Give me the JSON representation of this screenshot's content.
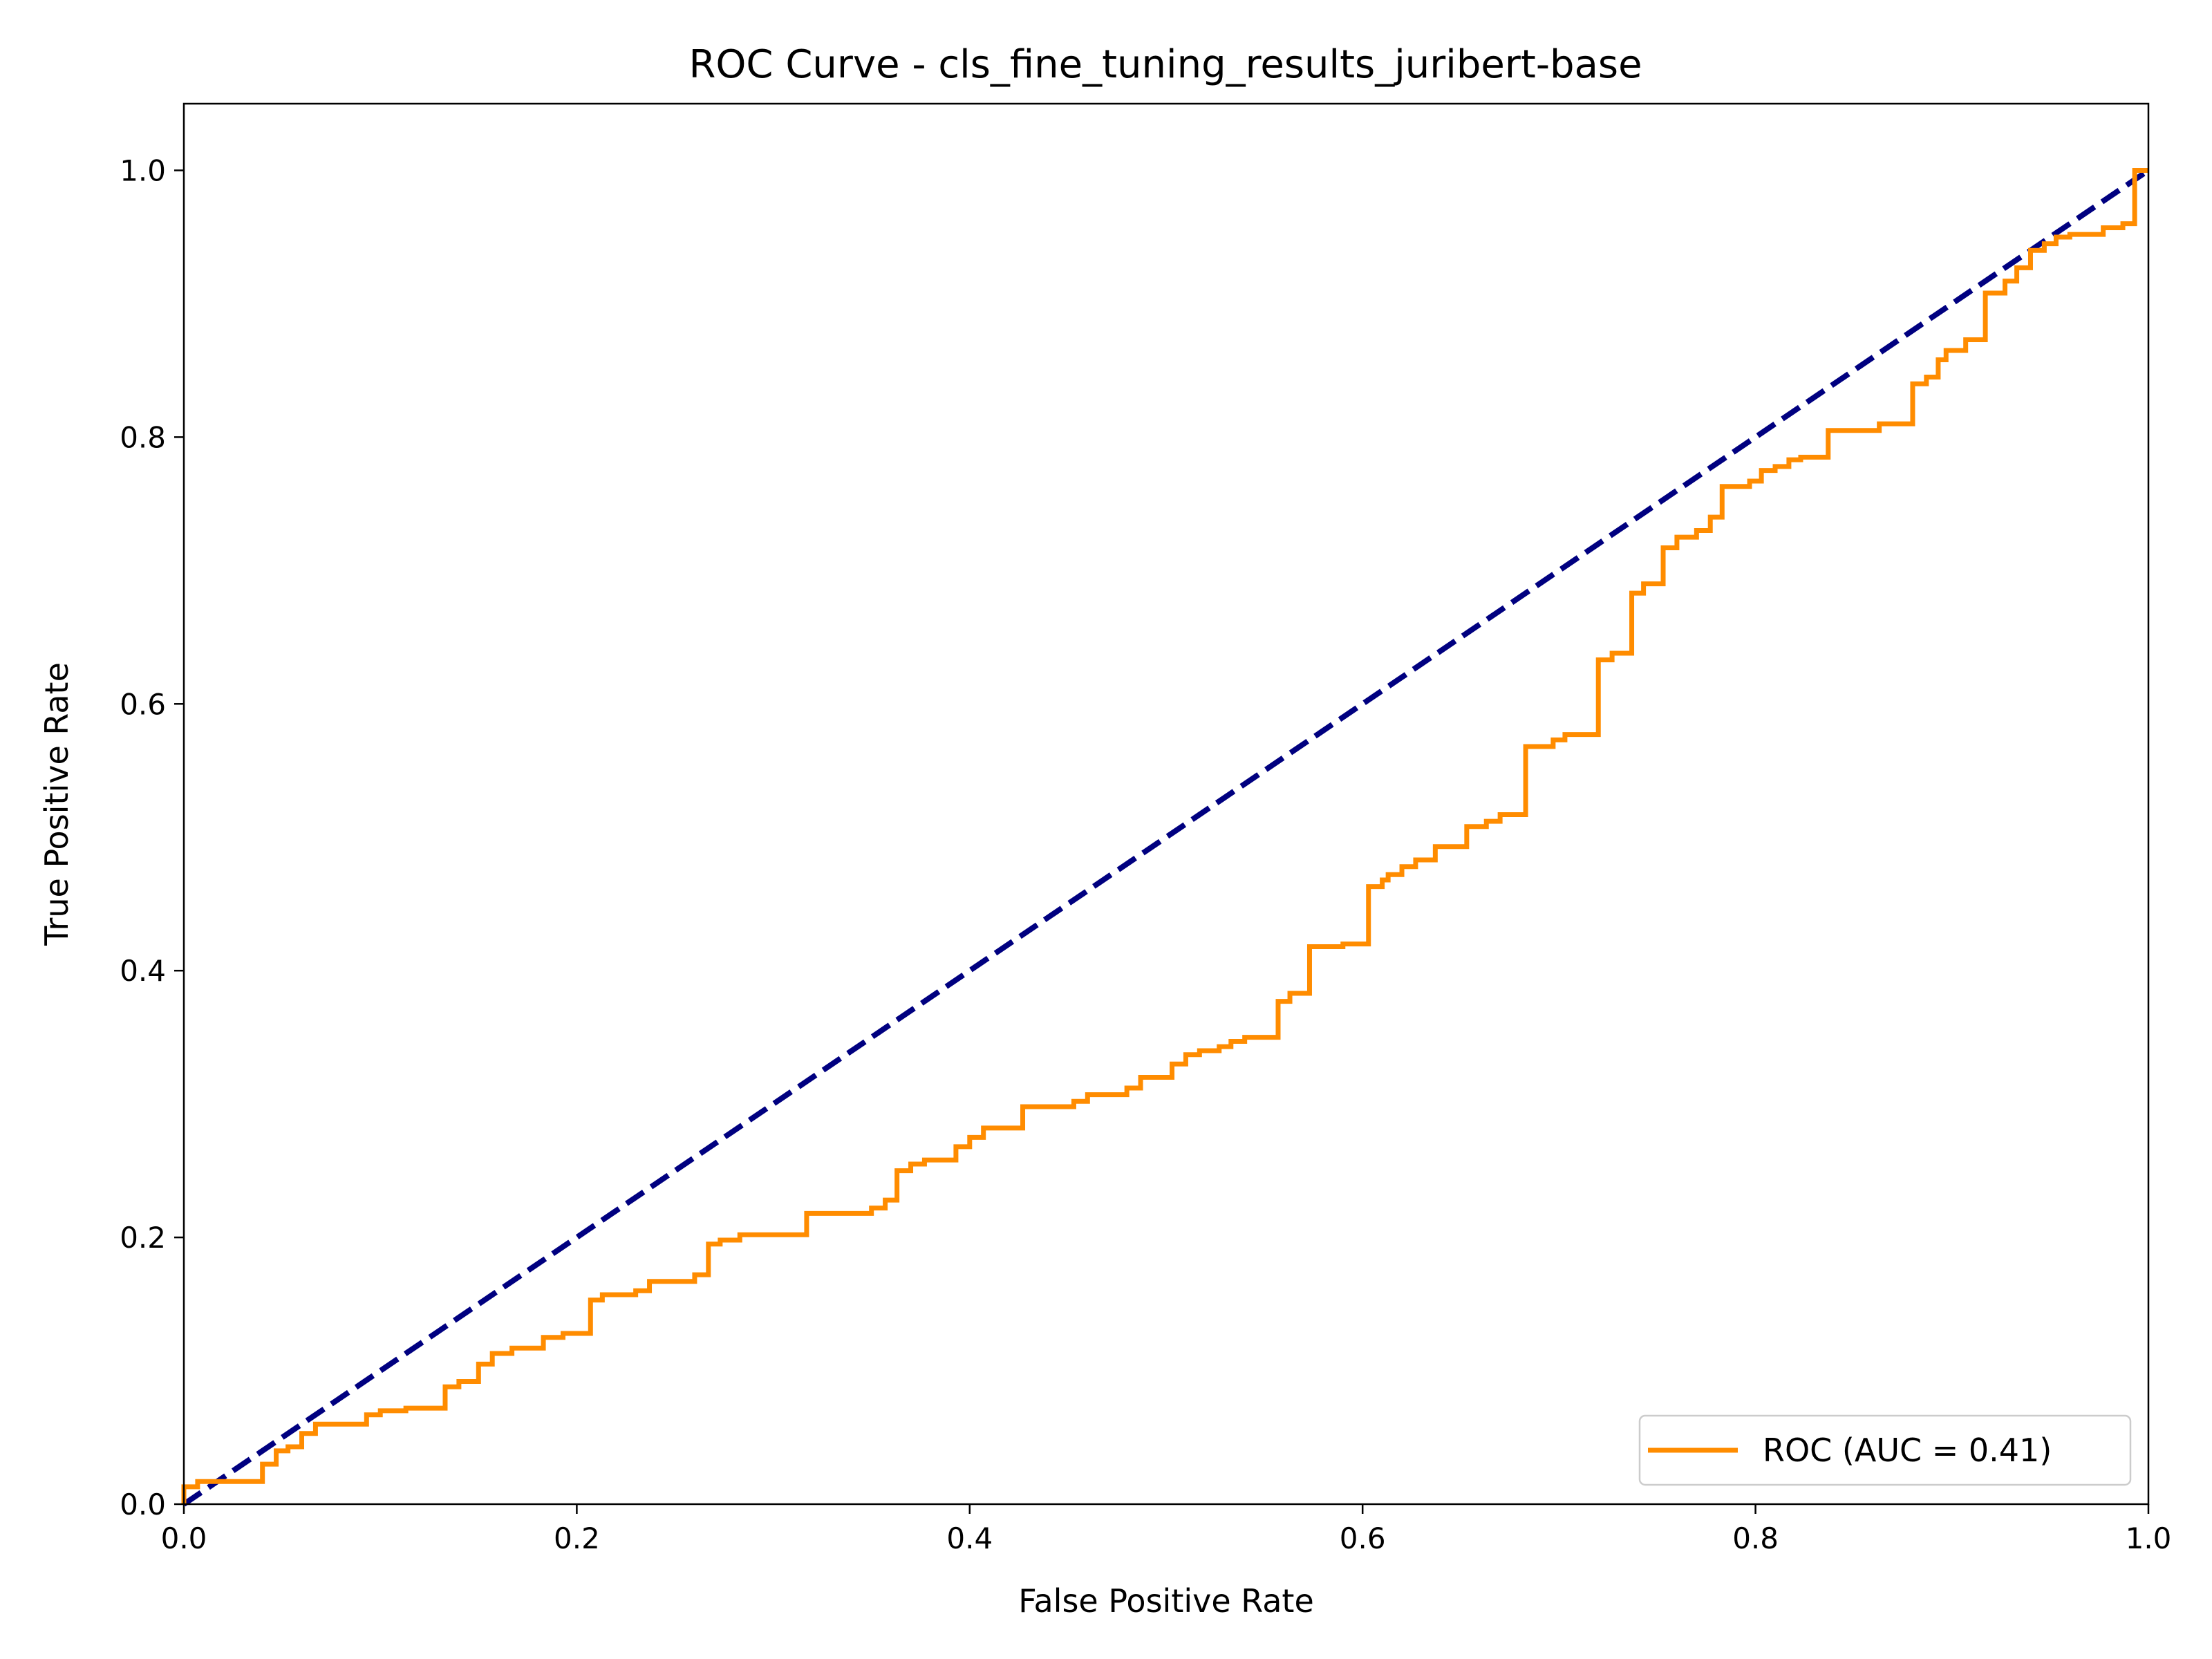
{
  "chart_data": {
    "type": "line",
    "title": "ROC Curve - cls_fine_tuning_results_juribert-base",
    "xlabel": "False Positive Rate",
    "ylabel": "True Positive Rate",
    "xlim": [
      0.0,
      1.0
    ],
    "ylim": [
      0.0,
      1.05
    ],
    "xticks": [
      0.0,
      0.2,
      0.4,
      0.6,
      0.8,
      1.0
    ],
    "xtick_labels": [
      "0.0",
      "0.2",
      "0.4",
      "0.6",
      "0.8",
      "1.0"
    ],
    "yticks": [
      0.0,
      0.2,
      0.4,
      0.6,
      0.8,
      1.0
    ],
    "ytick_labels": [
      "0.0",
      "0.2",
      "0.4",
      "0.6",
      "0.8",
      "1.0"
    ],
    "grid": false,
    "legend_position": "lower-right",
    "series": [
      {
        "name": "ROC (AUC = 0.41)",
        "color": "#ff8c00",
        "style": "solid",
        "step": true,
        "points": [
          [
            0.0,
            0.0
          ],
          [
            0.0,
            0.013
          ],
          [
            0.007,
            0.013
          ],
          [
            0.007,
            0.017
          ],
          [
            0.04,
            0.017
          ],
          [
            0.04,
            0.03
          ],
          [
            0.047,
            0.03
          ],
          [
            0.047,
            0.04
          ],
          [
            0.053,
            0.04
          ],
          [
            0.053,
            0.043
          ],
          [
            0.06,
            0.043
          ],
          [
            0.06,
            0.053
          ],
          [
            0.067,
            0.053
          ],
          [
            0.067,
            0.06
          ],
          [
            0.093,
            0.06
          ],
          [
            0.093,
            0.067
          ],
          [
            0.1,
            0.067
          ],
          [
            0.1,
            0.07
          ],
          [
            0.113,
            0.07
          ],
          [
            0.113,
            0.072
          ],
          [
            0.133,
            0.072
          ],
          [
            0.133,
            0.088
          ],
          [
            0.14,
            0.088
          ],
          [
            0.14,
            0.092
          ],
          [
            0.15,
            0.092
          ],
          [
            0.15,
            0.105
          ],
          [
            0.157,
            0.105
          ],
          [
            0.157,
            0.113
          ],
          [
            0.167,
            0.113
          ],
          [
            0.167,
            0.117
          ],
          [
            0.183,
            0.117
          ],
          [
            0.183,
            0.125
          ],
          [
            0.193,
            0.125
          ],
          [
            0.193,
            0.128
          ],
          [
            0.207,
            0.128
          ],
          [
            0.207,
            0.153
          ],
          [
            0.213,
            0.153
          ],
          [
            0.213,
            0.157
          ],
          [
            0.23,
            0.157
          ],
          [
            0.23,
            0.16
          ],
          [
            0.237,
            0.16
          ],
          [
            0.237,
            0.167
          ],
          [
            0.26,
            0.167
          ],
          [
            0.26,
            0.172
          ],
          [
            0.267,
            0.172
          ],
          [
            0.267,
            0.195
          ],
          [
            0.273,
            0.195
          ],
          [
            0.273,
            0.198
          ],
          [
            0.283,
            0.198
          ],
          [
            0.283,
            0.202
          ],
          [
            0.317,
            0.202
          ],
          [
            0.317,
            0.218
          ],
          [
            0.35,
            0.218
          ],
          [
            0.35,
            0.222
          ],
          [
            0.357,
            0.222
          ],
          [
            0.357,
            0.228
          ],
          [
            0.363,
            0.228
          ],
          [
            0.363,
            0.25
          ],
          [
            0.37,
            0.25
          ],
          [
            0.37,
            0.255
          ],
          [
            0.377,
            0.255
          ],
          [
            0.377,
            0.258
          ],
          [
            0.393,
            0.258
          ],
          [
            0.393,
            0.268
          ],
          [
            0.4,
            0.268
          ],
          [
            0.4,
            0.275
          ],
          [
            0.407,
            0.275
          ],
          [
            0.407,
            0.282
          ],
          [
            0.427,
            0.282
          ],
          [
            0.427,
            0.298
          ],
          [
            0.453,
            0.298
          ],
          [
            0.453,
            0.302
          ],
          [
            0.46,
            0.302
          ],
          [
            0.46,
            0.307
          ],
          [
            0.48,
            0.307
          ],
          [
            0.48,
            0.312
          ],
          [
            0.487,
            0.312
          ],
          [
            0.487,
            0.32
          ],
          [
            0.503,
            0.32
          ],
          [
            0.503,
            0.33
          ],
          [
            0.51,
            0.33
          ],
          [
            0.51,
            0.337
          ],
          [
            0.517,
            0.337
          ],
          [
            0.517,
            0.34
          ],
          [
            0.527,
            0.34
          ],
          [
            0.527,
            0.343
          ],
          [
            0.533,
            0.343
          ],
          [
            0.533,
            0.347
          ],
          [
            0.54,
            0.347
          ],
          [
            0.54,
            0.35
          ],
          [
            0.557,
            0.35
          ],
          [
            0.557,
            0.377
          ],
          [
            0.563,
            0.377
          ],
          [
            0.563,
            0.383
          ],
          [
            0.573,
            0.383
          ],
          [
            0.573,
            0.418
          ],
          [
            0.59,
            0.418
          ],
          [
            0.59,
            0.42
          ],
          [
            0.603,
            0.42
          ],
          [
            0.603,
            0.463
          ],
          [
            0.61,
            0.463
          ],
          [
            0.61,
            0.468
          ],
          [
            0.613,
            0.468
          ],
          [
            0.613,
            0.472
          ],
          [
            0.62,
            0.472
          ],
          [
            0.62,
            0.478
          ],
          [
            0.627,
            0.478
          ],
          [
            0.627,
            0.483
          ],
          [
            0.637,
            0.483
          ],
          [
            0.637,
            0.493
          ],
          [
            0.653,
            0.493
          ],
          [
            0.653,
            0.508
          ],
          [
            0.663,
            0.508
          ],
          [
            0.663,
            0.512
          ],
          [
            0.67,
            0.512
          ],
          [
            0.67,
            0.517
          ],
          [
            0.683,
            0.517
          ],
          [
            0.683,
            0.568
          ],
          [
            0.697,
            0.568
          ],
          [
            0.697,
            0.573
          ],
          [
            0.703,
            0.573
          ],
          [
            0.703,
            0.577
          ],
          [
            0.72,
            0.577
          ],
          [
            0.72,
            0.633
          ],
          [
            0.727,
            0.633
          ],
          [
            0.727,
            0.638
          ],
          [
            0.737,
            0.638
          ],
          [
            0.737,
            0.683
          ],
          [
            0.743,
            0.683
          ],
          [
            0.743,
            0.69
          ],
          [
            0.753,
            0.69
          ],
          [
            0.753,
            0.717
          ],
          [
            0.76,
            0.717
          ],
          [
            0.76,
            0.725
          ],
          [
            0.77,
            0.725
          ],
          [
            0.77,
            0.73
          ],
          [
            0.777,
            0.73
          ],
          [
            0.777,
            0.74
          ],
          [
            0.783,
            0.74
          ],
          [
            0.783,
            0.763
          ],
          [
            0.797,
            0.763
          ],
          [
            0.797,
            0.767
          ],
          [
            0.803,
            0.767
          ],
          [
            0.803,
            0.775
          ],
          [
            0.81,
            0.775
          ],
          [
            0.81,
            0.778
          ],
          [
            0.817,
            0.778
          ],
          [
            0.817,
            0.783
          ],
          [
            0.823,
            0.783
          ],
          [
            0.823,
            0.785
          ],
          [
            0.837,
            0.785
          ],
          [
            0.837,
            0.805
          ],
          [
            0.863,
            0.805
          ],
          [
            0.863,
            0.81
          ],
          [
            0.88,
            0.81
          ],
          [
            0.88,
            0.84
          ],
          [
            0.887,
            0.84
          ],
          [
            0.887,
            0.845
          ],
          [
            0.893,
            0.845
          ],
          [
            0.893,
            0.858
          ],
          [
            0.897,
            0.858
          ],
          [
            0.897,
            0.865
          ],
          [
            0.907,
            0.865
          ],
          [
            0.907,
            0.873
          ],
          [
            0.917,
            0.873
          ],
          [
            0.917,
            0.908
          ],
          [
            0.927,
            0.908
          ],
          [
            0.927,
            0.917
          ],
          [
            0.933,
            0.917
          ],
          [
            0.933,
            0.927
          ],
          [
            0.94,
            0.927
          ],
          [
            0.94,
            0.94
          ],
          [
            0.947,
            0.94
          ],
          [
            0.947,
            0.945
          ],
          [
            0.953,
            0.945
          ],
          [
            0.953,
            0.95
          ],
          [
            0.96,
            0.95
          ],
          [
            0.96,
            0.952
          ],
          [
            0.977,
            0.952
          ],
          [
            0.977,
            0.957
          ],
          [
            0.987,
            0.957
          ],
          [
            0.987,
            0.96
          ],
          [
            0.993,
            0.96
          ],
          [
            0.993,
            1.0
          ],
          [
            1.0,
            1.0
          ]
        ]
      },
      {
        "name": "",
        "color": "#000080",
        "style": "dashed",
        "step": false,
        "points": [
          [
            0.0,
            0.0
          ],
          [
            1.0,
            1.0
          ]
        ]
      }
    ]
  }
}
